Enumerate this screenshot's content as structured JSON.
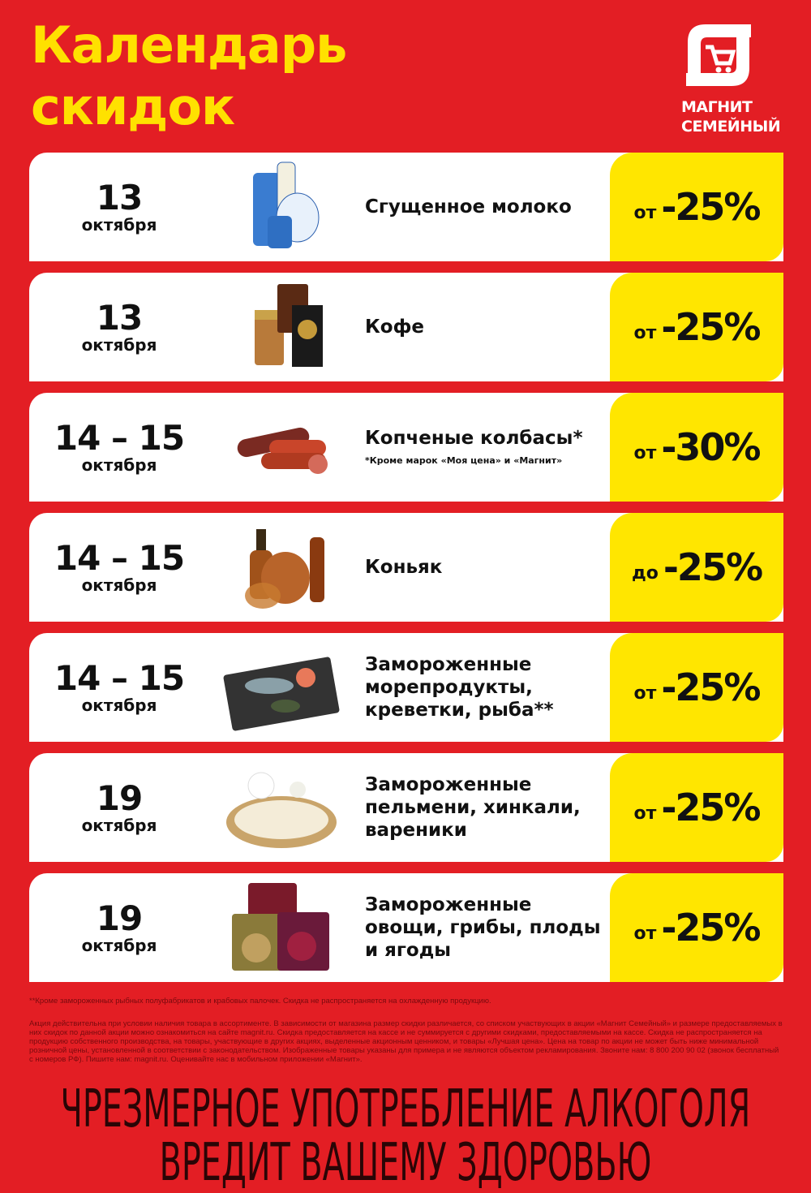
{
  "title": {
    "line1": "Календарь",
    "line2": "скидок"
  },
  "logo": {
    "line1": "МАГНИТ",
    "line2": "СЕМЕЙНЫЙ",
    "icon": "cart-icon"
  },
  "colors": {
    "background": "#e31e24",
    "accent": "#ffe600",
    "title": "#ffe100"
  },
  "items": [
    {
      "day": "13",
      "month": "октября",
      "name": "Сгущенное молоко",
      "prefix": "от",
      "discount": "-25%",
      "image": "condensed-milk"
    },
    {
      "day": "13",
      "month": "октября",
      "name": "Кофе",
      "prefix": "от",
      "discount": "-25%",
      "image": "coffee"
    },
    {
      "day": "14 – 15",
      "month": "октября",
      "name": "Копченые колбасы*",
      "note": "*Кроме марок «Моя цена» и «Магнит»",
      "prefix": "от",
      "discount": "-30%",
      "image": "sausages"
    },
    {
      "day": "14 – 15",
      "month": "октября",
      "name": "Коньяк",
      "prefix": "до",
      "discount": "-25%",
      "image": "cognac"
    },
    {
      "day": "14 – 15",
      "month": "октября",
      "name": "Замороженные морепродукты, креветки, рыба**",
      "prefix": "от",
      "discount": "-25%",
      "image": "seafood"
    },
    {
      "day": "19",
      "month": "октября",
      "name": "Замороженные пельмени, хинкали, вареники",
      "prefix": "от",
      "discount": "-25%",
      "image": "dumplings"
    },
    {
      "day": "19",
      "month": "октября",
      "name": "Замороженные овощи, грибы, плоды и ягоды",
      "prefix": "от",
      "discount": "-25%",
      "image": "frozen-vegetables"
    }
  ],
  "footnote": "**Кроме замороженных рыбных полуфабрикатов и крабовых палочек. Скидка не распространяется на охлажденную продукцию.",
  "legal": "Акция действительна при условии наличия товара в ассортименте. В зависимости от магазина размер скидки различается, со списком участвующих в акции «Магнит Семейный» и размере предоставляемых в них скидок по данной акции можно ознакомиться на сайте magnit.ru. Скидка предоставляется на кассе и не суммируется с другими скидками, предоставляемыми на кассе. Скидка не распространяется на продукцию собственного производства, на товары, участвующие в других акциях, выделенные акционным ценником, и товары «Лучшая цена». Цена на товар по акции не может быть ниже минимальной розничной цены, установленной в соответствии с законодательством. Изображенные товары указаны для примера и не являются объектом рекламирования. Звоните нам: 8 800 200 90 02 (звонок бесплатный с номеров РФ). Пишите нам: magnit.ru. Оценивайте нас в мобильном приложении «Магнит».",
  "warning": {
    "line1": "ЧРЕЗМЕРНОЕ УПОТРЕБЛЕНИЕ АЛКОГОЛЯ",
    "line2": "ВРЕДИТ ВАШЕМУ ЗДОРОВЬЮ"
  }
}
